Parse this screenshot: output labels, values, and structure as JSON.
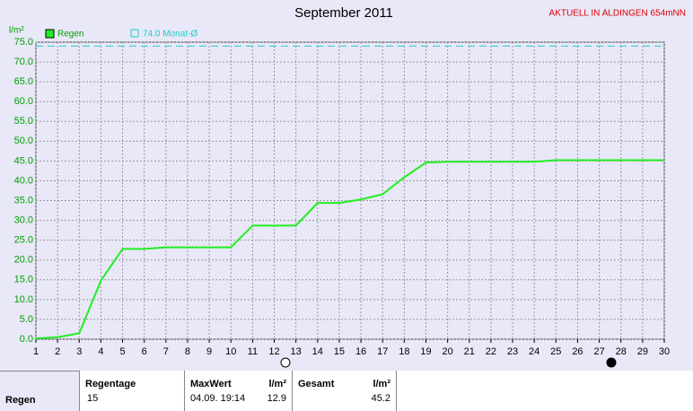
{
  "chart_data": {
    "type": "line",
    "title": "September 2011",
    "subtitle": "AKTUELL IN ALDINGEN 654mNN",
    "y_label": "l/m²",
    "x": [
      1,
      2,
      3,
      4,
      5,
      6,
      7,
      8,
      9,
      10,
      11,
      12,
      13,
      14,
      15,
      16,
      17,
      18,
      19,
      20,
      21,
      22,
      23,
      24,
      25,
      26,
      27,
      28,
      29,
      30
    ],
    "series": [
      {
        "name": "Regen",
        "color": "#22ee22",
        "values": [
          0.2,
          0.5,
          1.5,
          14.8,
          22.8,
          22.8,
          23.2,
          23.2,
          23.2,
          23.2,
          28.7,
          28.7,
          28.7,
          34.4,
          34.4,
          35.3,
          36.6,
          40.9,
          44.6,
          44.8,
          44.8,
          44.8,
          44.8,
          44.8,
          45.2,
          45.2,
          45.2,
          45.2,
          45.2,
          45.2
        ]
      }
    ],
    "average": {
      "value": 74,
      "label": "74.0 Monat-Ø",
      "color": "#22cccc"
    },
    "xlim": [
      1,
      30
    ],
    "xticks": [
      1,
      2,
      3,
      4,
      5,
      6,
      7,
      8,
      9,
      10,
      11,
      12,
      13,
      14,
      15,
      16,
      17,
      18,
      19,
      20,
      21,
      22,
      23,
      24,
      25,
      26,
      27,
      28,
      29,
      30
    ],
    "ylim": [
      0,
      75
    ],
    "yticks": [
      {
        "value": 0,
        "label": "0.0"
      },
      {
        "value": 5,
        "label": "5.0"
      },
      {
        "value": 10,
        "label": "10.0"
      },
      {
        "value": 15,
        "label": "15.0"
      },
      {
        "value": 20,
        "label": "20.0"
      },
      {
        "value": 25,
        "label": "25.0"
      },
      {
        "value": 30,
        "label": "30.0"
      },
      {
        "value": 35,
        "label": "35.0"
      },
      {
        "value": 40,
        "label": "40.0"
      },
      {
        "value": 45,
        "label": "45.0"
      },
      {
        "value": 50,
        "label": "50.0"
      },
      {
        "value": 55,
        "label": "55.0"
      },
      {
        "value": 60,
        "label": "60.0"
      },
      {
        "value": 65,
        "label": "65.0"
      },
      {
        "value": 70,
        "label": "70.0"
      },
      {
        "value": 75,
        "label": "75.0"
      }
    ],
    "grid": true
  },
  "table": {
    "row_label": "Regen",
    "regentage": {
      "header": "Regentage",
      "value": "15"
    },
    "maxwert": {
      "header": "MaxWert",
      "unit": "l/m²",
      "time": "04.09. 19:14",
      "value": "12.9"
    },
    "gesamt": {
      "header": "Gesamt",
      "unit": "l/m²",
      "value": "45.2"
    }
  }
}
